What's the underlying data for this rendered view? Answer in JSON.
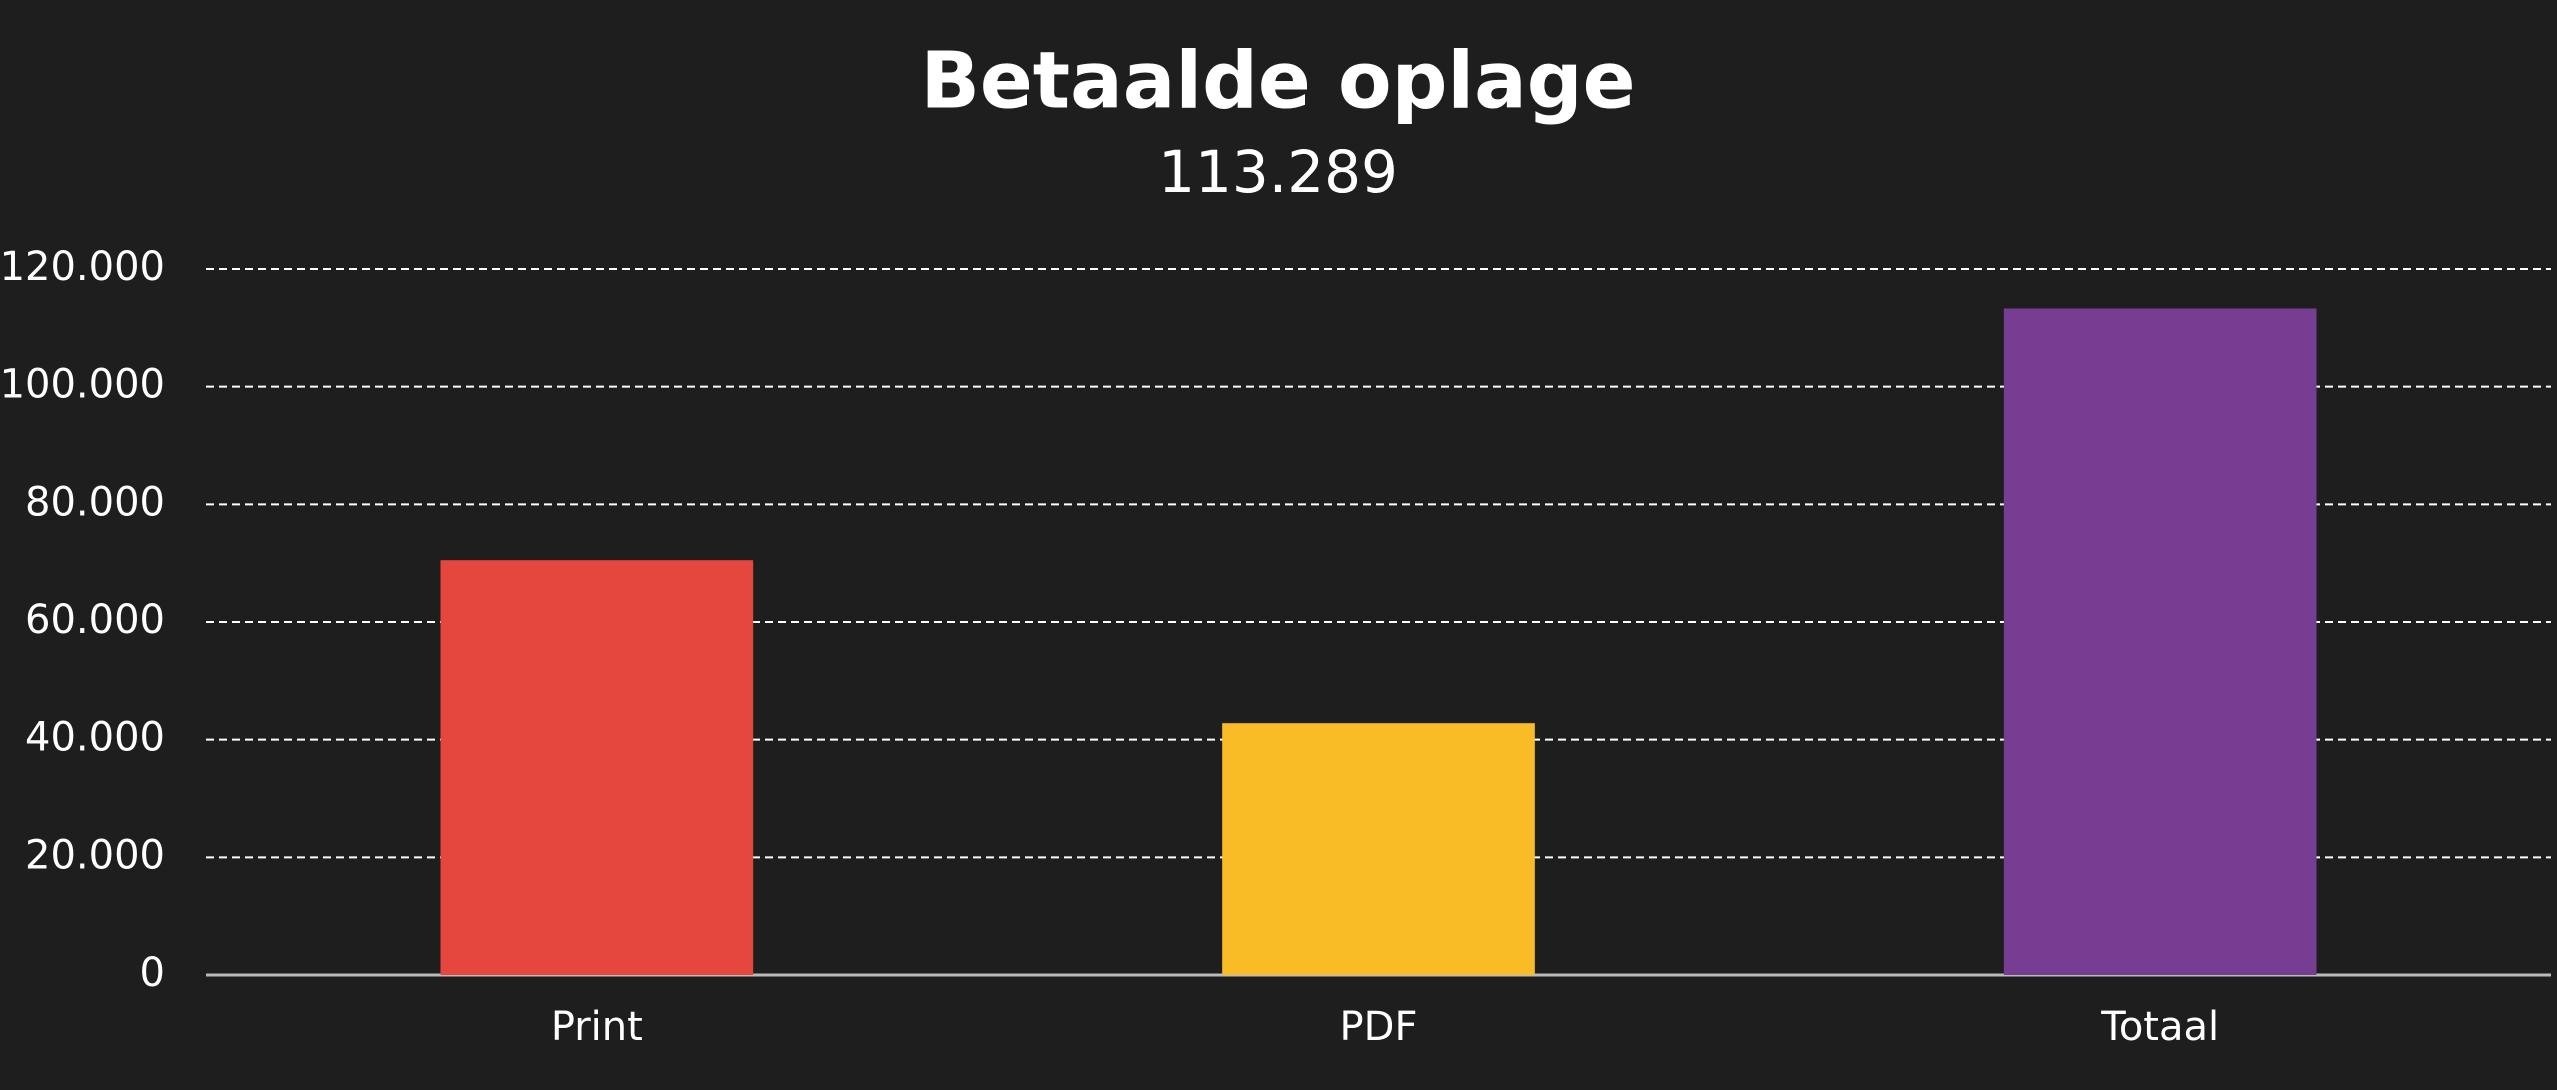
{
  "chart_data": {
    "type": "bar",
    "title": "Betaalde oplage",
    "subtitle": "113.289",
    "categories": [
      "Print",
      "PDF",
      "Totaal"
    ],
    "values": [
      70500,
      42800,
      113289
    ],
    "colors": [
      "#e5473f",
      "#f9bc27",
      "#773d93"
    ],
    "ylim": [
      0,
      120000
    ],
    "yticks": [
      0,
      {
        "value": 20000,
        "label": "20.000"
      },
      {
        "value": 40000,
        "label": "40.000"
      },
      {
        "value": 60000,
        "label": "60.000"
      },
      {
        "value": 80000,
        "label": "80.000"
      },
      {
        "value": 100000,
        "label": "100.000"
      },
      {
        "value": 120000,
        "label": "120.000"
      }
    ],
    "grid": true
  }
}
